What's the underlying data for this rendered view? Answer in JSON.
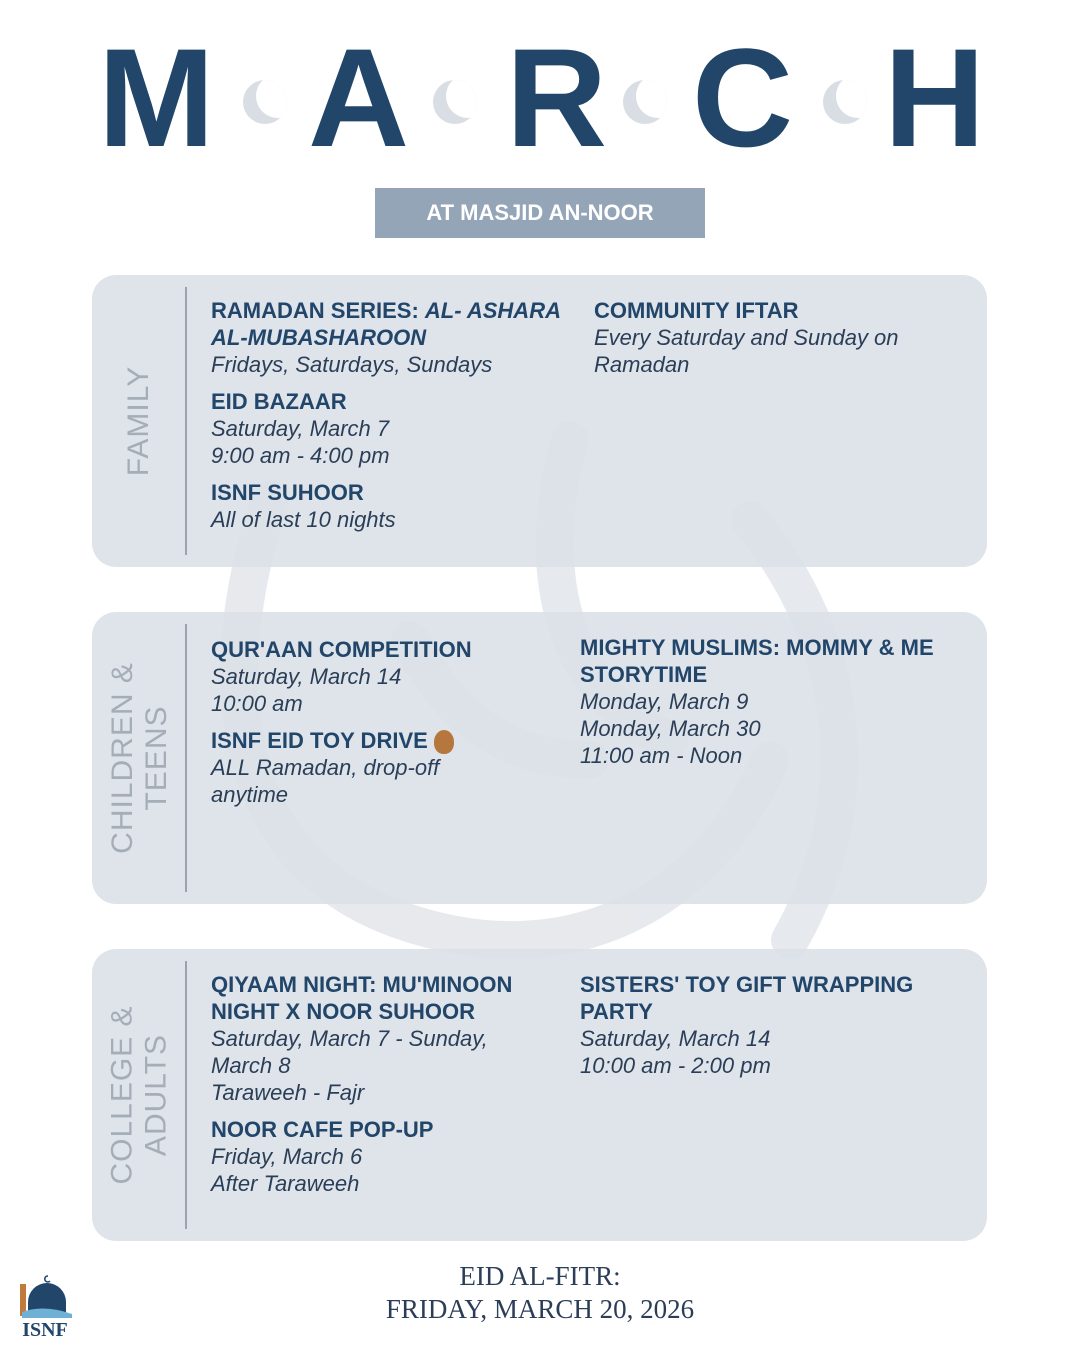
{
  "header": {
    "letters": [
      "M",
      "A",
      "R",
      "C",
      "H"
    ],
    "subtitle": "AT MASJID AN-NOOR",
    "colors": {
      "title": "#22466a",
      "badge": "#95a5b8",
      "moon": "#d9dee5",
      "panel": "#dce1e8"
    }
  },
  "sections": [
    {
      "label": "FAMILY",
      "left": [
        {
          "title": "RAMADAN SERIES: ",
          "title_italic": "AL- ASHARA AL-MUBASHAROON",
          "details": [
            "Fridays, Saturdays, Sundays"
          ]
        },
        {
          "title": "EID BAZAAR",
          "details": [
            "Saturday, March 7",
            "9:00 am - 4:00 pm"
          ]
        },
        {
          "title": "ISNF SUHOOR",
          "details": [
            "All of last 10 nights"
          ]
        }
      ],
      "right": [
        {
          "title": "COMMUNITY IFTAR",
          "details": [
            "Every Saturday and Sunday on Ramadan"
          ]
        }
      ]
    },
    {
      "label": "CHILDREN &\nTEENS",
      "left": [
        {
          "title": "QUR'AAN COMPETITION",
          "details": [
            "Saturday, March 14",
            "10:00 am"
          ]
        },
        {
          "title": "ISNF EID TOY DRIVE",
          "icon": "teddy-bear-icon",
          "details": [
            "ALL Ramadan, drop-off anytime"
          ]
        }
      ],
      "right": [
        {
          "title": "MIGHTY MUSLIMS: MOMMY & ME STORYTIME",
          "details": [
            "Monday, March 9",
            "Monday, March 30",
            "11:00 am - Noon"
          ]
        }
      ]
    },
    {
      "label": "COLLEGE &\nADULTS",
      "left": [
        {
          "title": "QIYAAM NIGHT: MU'MINOON NIGHT X NOOR SUHOOR",
          "details": [
            "Saturday, March 7 - Sunday, March 8",
            "Taraweeh - Fajr"
          ]
        },
        {
          "title": "NOOR CAFE POP-UP",
          "details": [
            "Friday, March 6",
            "After Taraweeh"
          ]
        }
      ],
      "right": [
        {
          "title": "SISTERS'  TOY GIFT WRAPPING PARTY",
          "details": [
            "Saturday, March 14",
            "10:00 am - 2:00 pm"
          ]
        }
      ]
    }
  ],
  "footer": {
    "line1": "EID AL-FITR:",
    "line2": "FRIDAY, MARCH 20, 2026"
  },
  "logo": {
    "text": "ISNF"
  }
}
